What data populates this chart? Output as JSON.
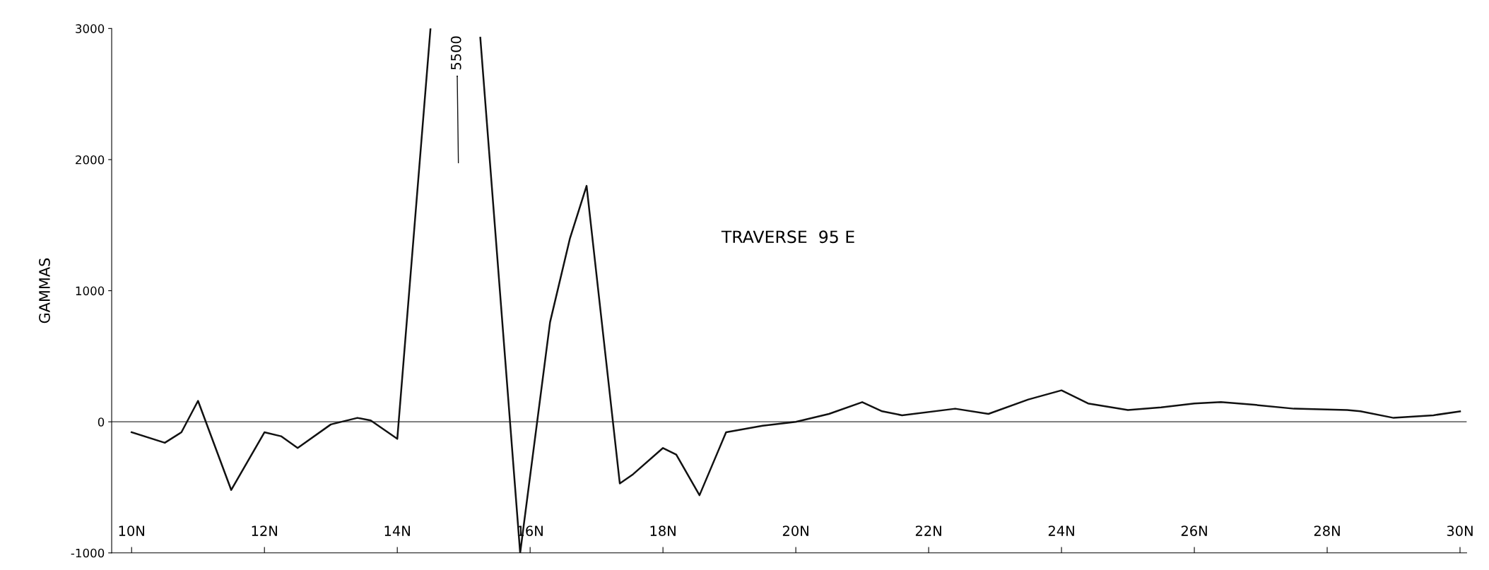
{
  "chart_data": {
    "type": "line",
    "ylabel": "GAMMAS",
    "annotations": [
      "TRAVERSE  95 E",
      "5500"
    ],
    "x": [
      10.0,
      10.5,
      10.75,
      11.0,
      11.5,
      12.0,
      12.25,
      12.5,
      13.0,
      13.4,
      13.6,
      14.0,
      14.5,
      14.95,
      15.25,
      15.85,
      16.3,
      16.6,
      16.85,
      17.35,
      17.55,
      18.0,
      18.2,
      18.55,
      18.95,
      19.5,
      20.0,
      20.5,
      21.0,
      21.3,
      21.6,
      22.4,
      22.9,
      23.5,
      24.0,
      24.4,
      25.0,
      25.5,
      26.0,
      26.4,
      26.9,
      27.5,
      28.3,
      28.5,
      29.0,
      29.6,
      30.0
    ],
    "series": [
      {
        "color": "#111111",
        "values": [
          -80,
          -160,
          -80,
          160,
          -520,
          -80,
          -110,
          -200,
          -20,
          30,
          10,
          -130,
          3000,
          null,
          2930,
          -1000,
          760,
          1400,
          1800,
          -470,
          -400,
          -200,
          -250,
          -560,
          -80,
          -30,
          0,
          60,
          150,
          80,
          50,
          100,
          60,
          170,
          240,
          140,
          90,
          110,
          140,
          150,
          130,
          100,
          90,
          80,
          30,
          50,
          80
        ]
      }
    ],
    "xlim": [
      9.7,
      30.1
    ],
    "ylim": [
      -1000,
      3000
    ],
    "xticks": [
      {
        "value": 10,
        "label": "10N"
      },
      {
        "value": 12,
        "label": "12N"
      },
      {
        "value": 14,
        "label": "14N"
      },
      {
        "value": 16,
        "label": "16N"
      },
      {
        "value": 18,
        "label": "18N"
      },
      {
        "value": 20,
        "label": "20N"
      },
      {
        "value": 22,
        "label": "22N"
      },
      {
        "value": 24,
        "label": "24N"
      },
      {
        "value": 26,
        "label": "26N"
      },
      {
        "value": 28,
        "label": "28N"
      },
      {
        "value": 30,
        "label": "30N"
      }
    ],
    "yticks": [
      -1000,
      0,
      1000,
      2000,
      3000
    ],
    "ref_lines": [
      {
        "axis": "y",
        "value": 0,
        "color": "#333333"
      }
    ],
    "grid": false,
    "marker": "none",
    "line_style": "solid"
  }
}
